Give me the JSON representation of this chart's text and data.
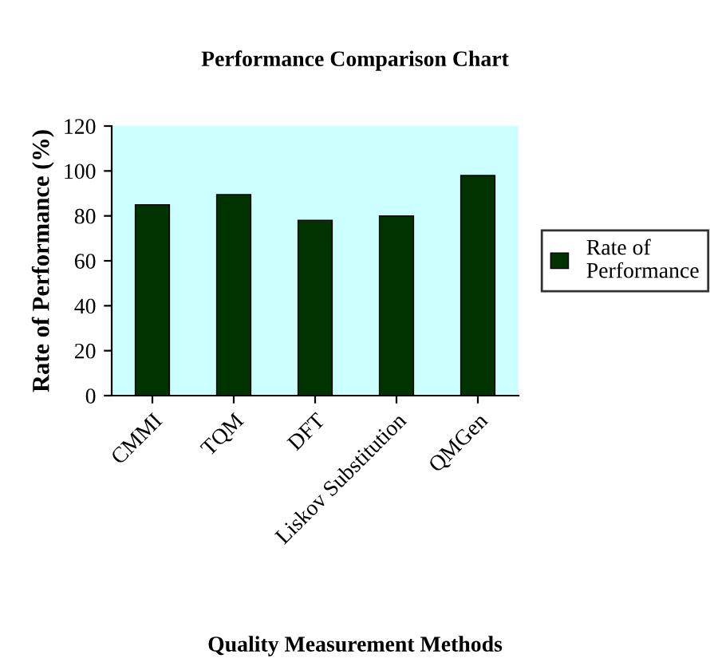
{
  "chart_data": {
    "type": "bar",
    "title": "Performance Comparison Chart",
    "xlabel": "Quality Measurement Methods",
    "ylabel": "Rate of Performance (%)",
    "categories": [
      "CMMI",
      "TQM",
      "DFT",
      "Liskov Substitution",
      "QMGen"
    ],
    "series": [
      {
        "name": "Rate of\nPerformance",
        "color": "#003300",
        "values": [
          85,
          89.5,
          78,
          80,
          98
        ]
      }
    ],
    "ylim": [
      0,
      120
    ],
    "yticks": [
      0,
      20,
      40,
      60,
      80,
      100,
      120
    ],
    "grid": false,
    "legend": "right"
  }
}
